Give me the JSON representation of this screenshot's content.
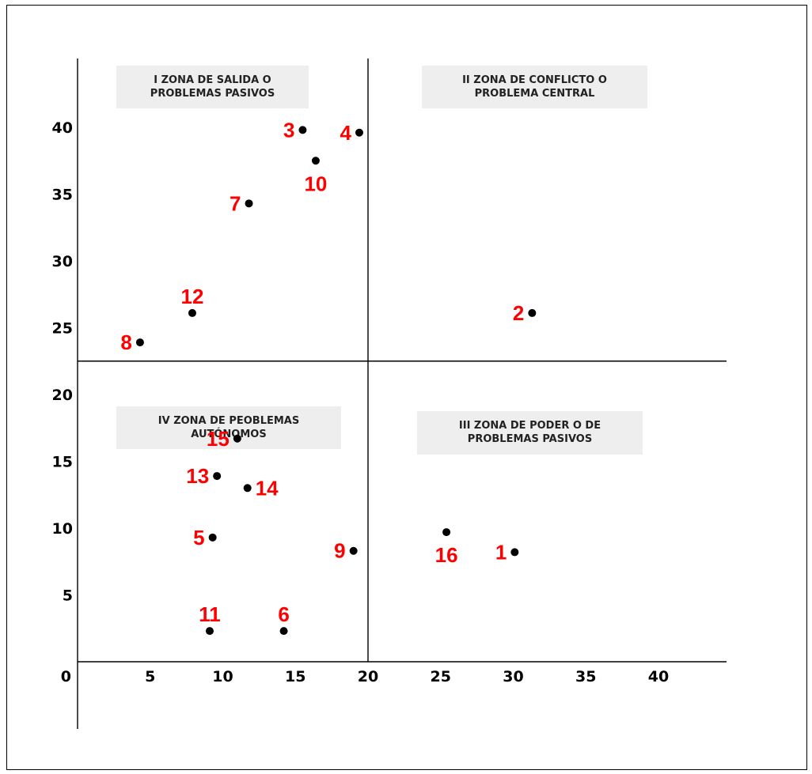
{
  "chart_data": {
    "type": "scatter",
    "title": "",
    "xlabel": "",
    "ylabel": "",
    "grid": false,
    "xlim": [
      0,
      45
    ],
    "ylim": [
      -5,
      45
    ],
    "x_ticks": [
      {
        "value": 0,
        "label": "0"
      },
      {
        "value": 5,
        "label": "5"
      },
      {
        "value": 10,
        "label": "10"
      },
      {
        "value": 15,
        "label": "15"
      },
      {
        "value": 20,
        "label": "20"
      },
      {
        "value": 25,
        "label": "25"
      },
      {
        "value": 30,
        "label": "30"
      },
      {
        "value": 35,
        "label": "35"
      },
      {
        "value": 40,
        "label": "40"
      }
    ],
    "y_ticks": [
      {
        "value": 5,
        "label": "5"
      },
      {
        "value": 10,
        "label": "10"
      },
      {
        "value": 15,
        "label": "15"
      },
      {
        "value": 20,
        "label": "20"
      },
      {
        "value": 25,
        "label": "25"
      },
      {
        "value": 30,
        "label": "30"
      },
      {
        "value": 35,
        "label": "35"
      },
      {
        "value": 40,
        "label": "40"
      }
    ],
    "divider_x": 20,
    "divider_y": 22.5,
    "marker_color": "#000000",
    "label_color": "#ff0000",
    "zones": [
      {
        "id": "I",
        "lines": [
          "I ZONA DE SALIDA O",
          "PROBLEMAS PASIVOS"
        ],
        "position": "top-left"
      },
      {
        "id": "II",
        "lines": [
          "II ZONA DE CONFLICTO O",
          "PROBLEMA CENTRAL"
        ],
        "position": "top-right"
      },
      {
        "id": "III",
        "lines": [
          "III ZONA DE PODER O DE",
          "PROBLEMAS PASIVOS"
        ],
        "position": "bottom-right"
      },
      {
        "id": "IV",
        "lines": [
          "IV ZONA DE PEOBLEMAS",
          "AUTÓNOMOS"
        ],
        "position": "bottom-left"
      }
    ],
    "points": [
      {
        "label": "1",
        "x": 30.1,
        "y": 8.2,
        "label_side": "left"
      },
      {
        "label": "2",
        "x": 31.3,
        "y": 26.1,
        "label_side": "left"
      },
      {
        "label": "3",
        "x": 15.5,
        "y": 39.8,
        "label_side": "left"
      },
      {
        "label": "4",
        "x": 19.4,
        "y": 39.6,
        "label_side": "left"
      },
      {
        "label": "5",
        "x": 9.3,
        "y": 9.3,
        "label_side": "left"
      },
      {
        "label": "6",
        "x": 14.2,
        "y": 2.3,
        "label_side": "above"
      },
      {
        "label": "7",
        "x": 11.8,
        "y": 34.3,
        "label_side": "left"
      },
      {
        "label": "8",
        "x": 4.3,
        "y": 23.9,
        "label_side": "left"
      },
      {
        "label": "9",
        "x": 19.0,
        "y": 8.3,
        "label_side": "left"
      },
      {
        "label": "10",
        "x": 16.4,
        "y": 37.5,
        "label_side": "below"
      },
      {
        "label": "11",
        "x": 9.1,
        "y": 2.3,
        "label_side": "above"
      },
      {
        "label": "12",
        "x": 7.9,
        "y": 26.1,
        "label_side": "above"
      },
      {
        "label": "13",
        "x": 9.6,
        "y": 13.9,
        "label_side": "left"
      },
      {
        "label": "14",
        "x": 11.7,
        "y": 13.0,
        "label_side": "right"
      },
      {
        "label": "15",
        "x": 11.0,
        "y": 16.7,
        "label_side": "left"
      },
      {
        "label": "16",
        "x": 25.4,
        "y": 9.7,
        "label_side": "below"
      }
    ]
  }
}
